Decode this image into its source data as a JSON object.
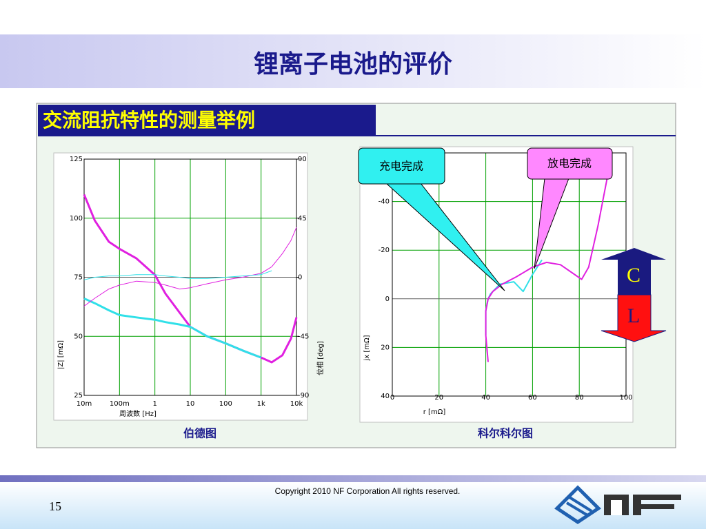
{
  "title": "锂离子电池的评价",
  "subtitle": "交流阻抗特性的测量举例",
  "callouts": [
    "充电完成",
    "放电完成"
  ],
  "cl": [
    "C",
    "L"
  ],
  "copyright": "Copyright 2010  NF Corporation   All rights reserved.",
  "page_number": "15",
  "chart_data": [
    {
      "type": "line",
      "caption": "伯德图",
      "xlabel": "周波数 [Hz]",
      "ylabel": "|Z| [mΩ]",
      "y2label": "位相 [deg]",
      "log_x": true,
      "grid": true,
      "xlim": [
        0.01,
        10000
      ],
      "xticks": [
        {
          "value": 0.01,
          "label": "10m"
        },
        {
          "value": 0.1,
          "label": "100m"
        },
        1,
        10,
        100,
        {
          "value": 1000,
          "label": "1k"
        },
        {
          "value": 10000,
          "label": "10k"
        }
      ],
      "ylim": [
        25,
        125
      ],
      "yticks": [
        25,
        50,
        75,
        100,
        125
      ],
      "y2lim": [
        -90,
        90
      ],
      "y2ticks": [
        -90,
        -45,
        0,
        45,
        90
      ],
      "x": [
        0.01,
        0.02,
        0.05,
        0.1,
        0.3,
        1,
        2,
        5,
        10,
        30,
        100,
        300,
        1000,
        2000,
        4000,
        7000,
        10000
      ],
      "series": [
        {
          "color": "#e020e0",
          "values": [
            110,
            99,
            90,
            87,
            83,
            76,
            68,
            60,
            54,
            50,
            47,
            44,
            41,
            39,
            42,
            49,
            58
          ]
        },
        {
          "color": "#30e0e8",
          "values": [
            66,
            64,
            61,
            59,
            58,
            57,
            56,
            55,
            54,
            50,
            47,
            44,
            41,
            null,
            null,
            null,
            null
          ]
        },
        {
          "color": "#e020e0",
          "axis": "y2",
          "values": [
            -22,
            -16,
            -9,
            -6,
            -3,
            -4,
            -6,
            -9,
            -8,
            -5,
            -2,
            0,
            3,
            8,
            18,
            28,
            38
          ]
        },
        {
          "color": "#30e0e8",
          "axis": "y2",
          "values": [
            -2,
            0,
            1,
            1,
            2,
            2,
            1,
            0,
            -1,
            -1,
            0,
            1,
            2,
            5,
            null,
            null,
            null
          ]
        }
      ]
    },
    {
      "type": "line",
      "caption": "科尔科尔图",
      "xlabel": "r [mΩ]",
      "ylabel": "jx [mΩ]",
      "grid": true,
      "xlim": [
        0,
        100
      ],
      "xticks": [
        0,
        20,
        40,
        60,
        80,
        100
      ],
      "ylim": [
        40,
        -60
      ],
      "yticks": [
        -40,
        -20,
        0,
        20,
        40
      ],
      "series": [
        {
          "color": "#30e0e8",
          "x": [
            40,
            40,
            41,
            42,
            46,
            52,
            56,
            60,
            64
          ],
          "values": [
            15,
            5,
            0,
            -2,
            -6,
            -7,
            -3,
            -10,
            -16
          ]
        },
        {
          "color": "#e020e0",
          "x": [
            41,
            40,
            40,
            41,
            43,
            47,
            53,
            60,
            66,
            72,
            78,
            81,
            84,
            88,
            92
          ],
          "values": [
            26,
            15,
            5,
            0,
            -3,
            -6,
            -9,
            -13,
            -15,
            -14,
            -10,
            -8,
            -13,
            -30,
            -50
          ]
        }
      ]
    }
  ]
}
